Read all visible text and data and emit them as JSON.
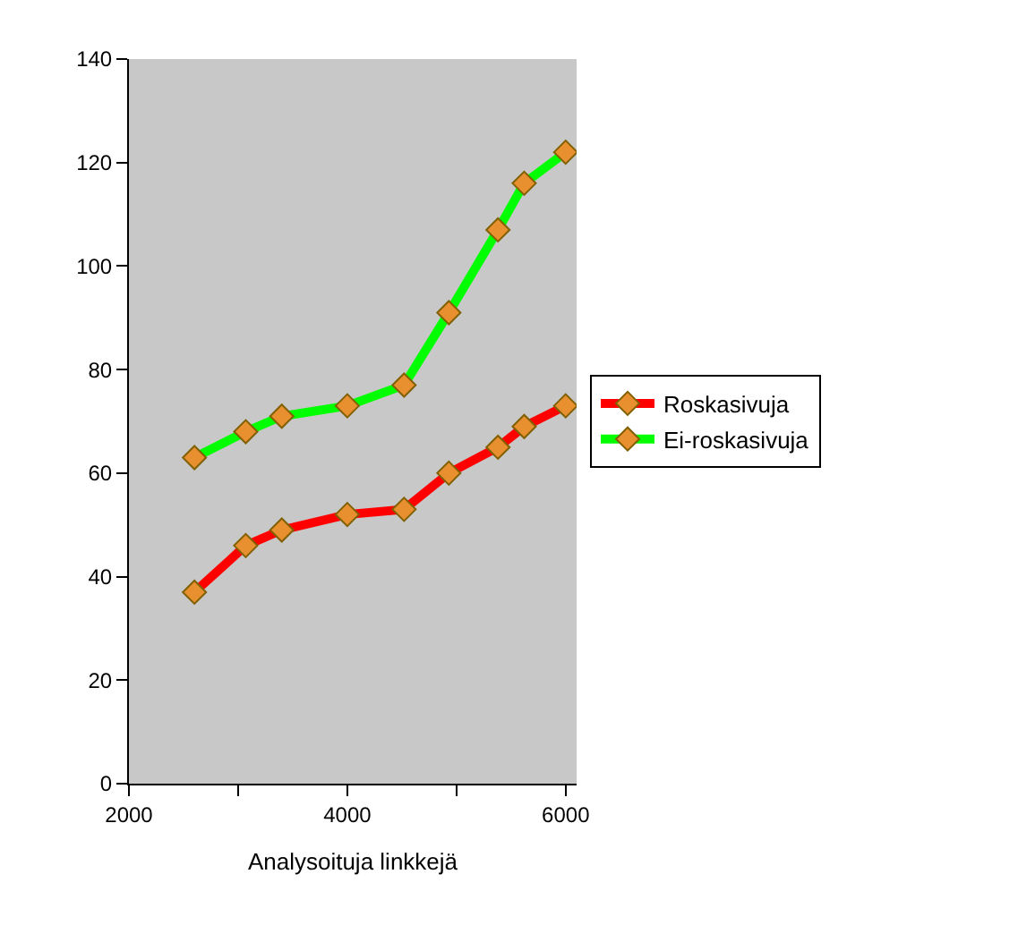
{
  "chart_data": {
    "type": "line",
    "xlabel": "Analysoituja linkkejä",
    "x": [
      2600,
      3070,
      3400,
      4000,
      4520,
      4930,
      5380,
      5620,
      6000
    ],
    "series": [
      {
        "name": "Roskasivuja",
        "color": "#ff0000",
        "values": [
          37,
          46,
          49,
          52,
          53,
          60,
          65,
          69,
          73
        ]
      },
      {
        "name": "Ei-roskasivuja",
        "color": "#00ff00",
        "values": [
          63,
          68,
          71,
          73,
          77,
          91,
          107,
          116,
          122
        ]
      }
    ],
    "xlim": [
      2000,
      6100
    ],
    "xticks": [
      2000,
      {
        "value": 3000,
        "label": null
      },
      4000,
      {
        "value": 5000,
        "label": null
      },
      6000
    ],
    "ylim": [
      0,
      140
    ],
    "yticks": [
      0,
      20,
      40,
      60,
      80,
      100,
      120,
      140
    ],
    "grid": false,
    "legend": "right",
    "marker": "diamond",
    "line_style": "solid"
  }
}
